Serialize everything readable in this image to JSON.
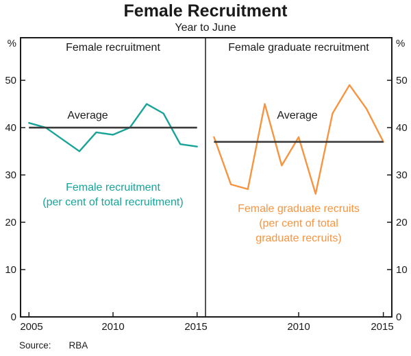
{
  "header": {
    "title": "Female Recruitment",
    "subtitle": "Year to June"
  },
  "axes": {
    "unit": "%",
    "y_ticks": [
      0,
      10,
      20,
      30,
      40,
      50
    ],
    "ylim": [
      0,
      59
    ]
  },
  "chart_data": [
    {
      "type": "line",
      "panel": "left",
      "title": "Female recruitment",
      "xlim": [
        2004.5,
        2015.5
      ],
      "x_ticks": [
        2005,
        2010,
        2015
      ],
      "series": [
        {
          "name": "Female recruitment",
          "color": "#17a398",
          "x": [
            2005,
            2006,
            2007,
            2008,
            2009,
            2010,
            2011,
            2012,
            2013,
            2014,
            2015
          ],
          "values": [
            41,
            40,
            37.5,
            35,
            39,
            38.5,
            40,
            45,
            43,
            36.5,
            36
          ]
        }
      ],
      "average": {
        "label": "Average",
        "value": 40,
        "x_start": 2005,
        "x_end": 2015,
        "color": "#3a3a3a"
      },
      "annotation": {
        "color": "#17a398",
        "lines": [
          "Female recruitment",
          "(per cent of total recruitment)"
        ]
      }
    },
    {
      "type": "line",
      "panel": "right",
      "title": "Female graduate recruitment",
      "xlim": [
        2004.5,
        2015.5
      ],
      "x_ticks": [
        2010,
        2015
      ],
      "series": [
        {
          "name": "Female graduate recruits",
          "color": "#f79440",
          "x": [
            2005,
            2006,
            2007,
            2008,
            2009,
            2010,
            2011,
            2012,
            2013,
            2014,
            2015
          ],
          "values": [
            38,
            28,
            27,
            45,
            32,
            38,
            26,
            43,
            49,
            44,
            37
          ]
        }
      ],
      "average": {
        "label": "Average",
        "value": 37,
        "x_start": 2005,
        "x_end": 2015,
        "color": "#3a3a3a"
      },
      "annotation": {
        "color": "#f79440",
        "lines": [
          "Female graduate recruits",
          "(per cent of total",
          "graduate recruits)"
        ]
      }
    }
  ],
  "footer": {
    "source_label": "Source:",
    "source_value": "RBA"
  }
}
